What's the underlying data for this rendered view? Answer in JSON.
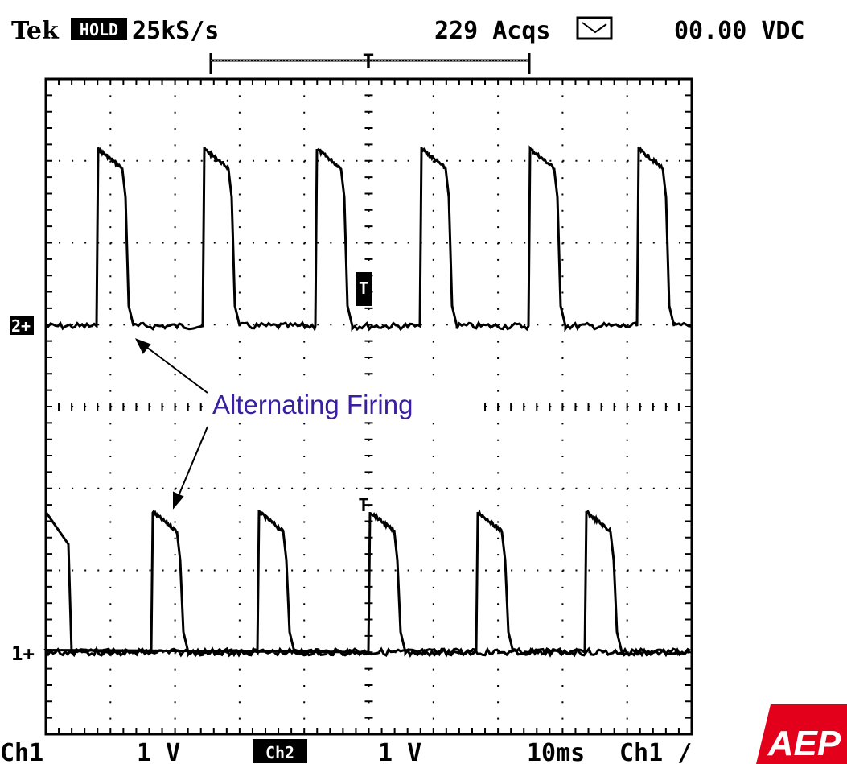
{
  "header": {
    "brand": "Tek",
    "mode": "HOLD",
    "sample_rate": "25kS/s",
    "acquisitions": "229 Acqs",
    "readout": "00.00 VDC"
  },
  "markers": {
    "trigger_position": "T",
    "ch2_ground": "2+",
    "ch1_ground": "1+",
    "ch2_trigger": "T",
    "ch1_trigger": "T"
  },
  "annotation": "Alternating Firing",
  "footer": {
    "ch1": "Ch1",
    "ch1_scale": "1 V",
    "ch2": "Ch2",
    "ch2_scale": "1 V",
    "timebase": "10ms",
    "trigger": "Ch1 ∕"
  },
  "logo": "AEP"
}
